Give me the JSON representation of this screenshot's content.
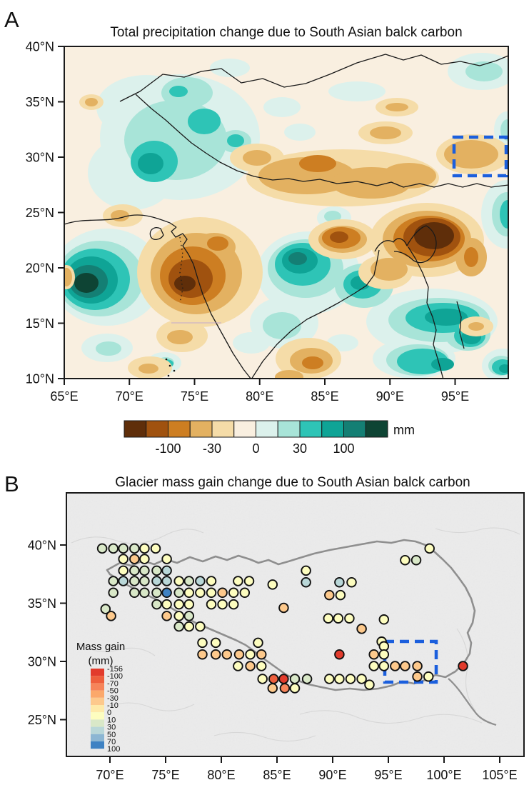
{
  "panel_a": {
    "label": "A",
    "title": "Total precipitation change due to South Asian balck carbon",
    "x_ticks": [
      {
        "lon": 65,
        "label": "65°E"
      },
      {
        "lon": 70,
        "label": "70°E"
      },
      {
        "lon": 75,
        "label": "75°E"
      },
      {
        "lon": 80,
        "label": "80°E"
      },
      {
        "lon": 85,
        "label": "85°E"
      },
      {
        "lon": 90,
        "label": "90°E"
      },
      {
        "lon": 95,
        "label": "95°E"
      }
    ],
    "y_ticks": [
      {
        "lat": 40,
        "label": "40°N"
      },
      {
        "lat": 35,
        "label": "35°N"
      },
      {
        "lat": 30,
        "label": "30°N"
      },
      {
        "lat": 25,
        "label": "25°N"
      },
      {
        "lat": 20,
        "label": "20°N"
      },
      {
        "lat": 15,
        "label": "15°N"
      },
      {
        "lat": 10,
        "label": "10°N"
      }
    ],
    "colorbar": {
      "unit": "mm",
      "colors": [
        "#5f2e0a",
        "#a0520f",
        "#cd7e22",
        "#e3b161",
        "#f5dca8",
        "#f9efe0",
        "#dcf1ec",
        "#a8e4d8",
        "#2ec4b6",
        "#0fa496",
        "#147f74",
        "#0e4434"
      ],
      "labels": [
        {
          "text": "-100",
          "boundary": 2
        },
        {
          "text": "-30",
          "boundary": 4
        },
        {
          "text": "0",
          "boundary": 6
        },
        {
          "text": "30",
          "boundary": 8
        },
        {
          "text": "100",
          "boundary": 10
        }
      ]
    },
    "highlight_box": {
      "lon_min": 94.9,
      "lon_max": 98.9,
      "lat_min": 28.3,
      "lat_max": 31.8,
      "color": "#1b5fdd"
    }
  },
  "panel_b": {
    "label": "B",
    "title": "Glacier mass gain change due to South Asian balck carbon",
    "x_ticks": [
      {
        "lon": 70,
        "label": "70°E"
      },
      {
        "lon": 75,
        "label": "75°E"
      },
      {
        "lon": 80,
        "label": "80°E"
      },
      {
        "lon": 85,
        "label": "85°E"
      },
      {
        "lon": 90,
        "label": "90°E"
      },
      {
        "lon": 95,
        "label": "95°E"
      },
      {
        "lon": 100,
        "label": "100°E"
      },
      {
        "lon": 105,
        "label": "105°E"
      }
    ],
    "y_ticks": [
      {
        "lat": 40,
        "label": "40°N"
      },
      {
        "lat": 35,
        "label": "35°N"
      },
      {
        "lat": 30,
        "label": "30°N"
      },
      {
        "lat": 25,
        "label": "25°N"
      }
    ],
    "legend": {
      "title_line1": "Mass gain",
      "title_line2": "(mm)",
      "labels": [
        "-156",
        "-100",
        "-70",
        "-50",
        "-30",
        "-10",
        "0",
        "10",
        "30",
        "50",
        "70",
        "100"
      ],
      "colors": [
        "#e23b2c",
        "#ee5f3d",
        "#f6845a",
        "#fba86b",
        "#fdc98c",
        "#feeaa9",
        "#fdfdbf",
        "#d9e8c8",
        "#b9d7d8",
        "#8cb6d3",
        "#3f82c3"
      ]
    },
    "highlight_box": {
      "lon_min": 94.7,
      "lon_max": 99.3,
      "lat_min": 28.2,
      "lat_max": 31.7,
      "color": "#1b5fdd"
    }
  },
  "chart_data": [
    {
      "type": "heatmap",
      "subtype": "filled-contour-map",
      "title": "Total precipitation change due to South Asian balck carbon",
      "units": "mm",
      "lon_range": [
        65,
        99.2
      ],
      "lat_range": [
        10,
        40
      ],
      "x_tick_labels": [
        "65°E",
        "70°E",
        "75°E",
        "80°E",
        "85°E",
        "90°E",
        "95°E"
      ],
      "y_tick_labels": [
        "40°N",
        "35°N",
        "30°N",
        "25°N",
        "20°N",
        "15°N",
        "10°N"
      ],
      "colorbar_tick_labels": [
        "-100",
        "-30",
        "0",
        "30",
        "100"
      ],
      "colorbar_colors": [
        "#5f2e0a",
        "#a0520f",
        "#cd7e22",
        "#e3b161",
        "#f5dca8",
        "#f9efe0",
        "#dcf1ec",
        "#a8e4d8",
        "#2ec4b6",
        "#0fa496",
        "#147f74",
        "#0e4434"
      ],
      "highlight_box_lonlat": {
        "lon": [
          94.9,
          98.9
        ],
        "lat": [
          28.3,
          31.8
        ]
      },
      "anomaly_centers": [
        {
          "lon": 67,
          "lat": 18.5,
          "value_mm": 150,
          "sign": "increase"
        },
        {
          "lon": 73,
          "lat": 33,
          "value_mm": 100,
          "sign": "increase"
        },
        {
          "lon": 84,
          "lat": 22,
          "value_mm": 150,
          "sign": "increase"
        },
        {
          "lon": 88,
          "lat": 19.5,
          "value_mm": 100,
          "sign": "increase"
        },
        {
          "lon": 92,
          "lat": 16,
          "value_mm": 70,
          "sign": "increase"
        },
        {
          "lon": 75,
          "lat": 18.5,
          "value_mm": -150,
          "sign": "decrease"
        },
        {
          "lon": 92,
          "lat": 23.5,
          "value_mm": -150,
          "sign": "decrease"
        },
        {
          "lon": 86,
          "lat": 23,
          "value_mm": -70,
          "sign": "decrease"
        },
        {
          "lon": 85,
          "lat": 28,
          "value_mm": -50,
          "sign": "decrease"
        },
        {
          "lon": 96.5,
          "lat": 31,
          "value_mm": -30,
          "sign": "decrease"
        }
      ]
    },
    {
      "type": "scatter",
      "subtype": "dot-map",
      "title": "Glacier mass gain change due to South Asian balck carbon",
      "units": "mm",
      "legend_title": "Mass gain (mm)",
      "legend_boundaries": [
        -156,
        -100,
        -70,
        -50,
        -30,
        -10,
        0,
        10,
        30,
        50,
        70,
        100
      ],
      "classes": {
        "y": {
          "color": "#fdfdbf",
          "mass_gain_mm": "0 to 10"
        },
        "g": {
          "color": "#d9e8c8",
          "mass_gain_mm": "10 to 30"
        },
        "gb": {
          "color": "#b9d7d8",
          "mass_gain_mm": "30 to 50"
        },
        "B": {
          "color": "#3f82c3",
          "mass_gain_mm": "70 to 100"
        },
        "o1": {
          "color": "#fdc98c",
          "mass_gain_mm": "-30 to -10"
        },
        "o2": {
          "color": "#f6845a",
          "mass_gain_mm": "-70 to -50"
        },
        "o3": {
          "color": "#ee5f3d",
          "mass_gain_mm": "-100 to -70"
        },
        "R": {
          "color": "#e23b2c",
          "mass_gain_mm": "-156 to -100"
        }
      },
      "points": [
        [
          69.3,
          39.7,
          "g"
        ],
        [
          70.3,
          39.7,
          "g"
        ],
        [
          71.2,
          39.7,
          "g"
        ],
        [
          72.2,
          39.7,
          "g"
        ],
        [
          73.1,
          39.7,
          "y"
        ],
        [
          74.1,
          39.7,
          "y"
        ],
        [
          71.2,
          38.8,
          "y"
        ],
        [
          72.2,
          38.8,
          "o1"
        ],
        [
          73.1,
          38.8,
          "y"
        ],
        [
          75.1,
          38.8,
          "y"
        ],
        [
          71.2,
          37.8,
          "y"
        ],
        [
          72.2,
          37.8,
          "g"
        ],
        [
          73.1,
          37.8,
          "g"
        ],
        [
          74.2,
          37.8,
          "g"
        ],
        [
          75.1,
          37.8,
          "gb"
        ],
        [
          87.6,
          37.8,
          "y"
        ],
        [
          70.3,
          36.9,
          "g"
        ],
        [
          71.2,
          36.9,
          "gb"
        ],
        [
          72.2,
          36.9,
          "g"
        ],
        [
          73.1,
          36.9,
          "g"
        ],
        [
          74.2,
          36.9,
          "gb"
        ],
        [
          75.1,
          36.9,
          "gb"
        ],
        [
          76.2,
          36.9,
          "y"
        ],
        [
          77.1,
          36.9,
          "g"
        ],
        [
          78.1,
          36.9,
          "gb"
        ],
        [
          79.1,
          36.9,
          "y"
        ],
        [
          81.5,
          36.9,
          "y"
        ],
        [
          82.5,
          36.9,
          "y"
        ],
        [
          87.6,
          36.8,
          "gb"
        ],
        [
          90.6,
          36.8,
          "gb"
        ],
        [
          91.7,
          36.8,
          "y"
        ],
        [
          84.6,
          36.6,
          "y"
        ],
        [
          70.3,
          35.9,
          "g"
        ],
        [
          72.2,
          35.9,
          "g"
        ],
        [
          73.1,
          35.9,
          "g"
        ],
        [
          74.2,
          35.9,
          "g"
        ],
        [
          75.1,
          35.9,
          "B"
        ],
        [
          76.2,
          35.9,
          "g"
        ],
        [
          77.1,
          35.9,
          "y"
        ],
        [
          78.1,
          35.9,
          "y"
        ],
        [
          79.1,
          35.9,
          "y"
        ],
        [
          80.1,
          35.9,
          "o1"
        ],
        [
          81.1,
          35.9,
          "y"
        ],
        [
          82.1,
          35.9,
          "y"
        ],
        [
          89.7,
          35.7,
          "o1"
        ],
        [
          90.7,
          35.7,
          "y"
        ],
        [
          74.2,
          34.9,
          "g"
        ],
        [
          75.1,
          34.9,
          "y"
        ],
        [
          76.2,
          34.9,
          "y"
        ],
        [
          77.1,
          34.9,
          "y"
        ],
        [
          79.1,
          34.9,
          "y"
        ],
        [
          80.1,
          34.9,
          "y"
        ],
        [
          81.1,
          34.9,
          "y"
        ],
        [
          69.6,
          34.5,
          "g"
        ],
        [
          85.6,
          34.6,
          "o1"
        ],
        [
          70.1,
          33.9,
          "o1"
        ],
        [
          75.1,
          33.9,
          "o1"
        ],
        [
          76.2,
          33.9,
          "y"
        ],
        [
          77.1,
          33.9,
          "g"
        ],
        [
          76.2,
          33.0,
          "g"
        ],
        [
          77.1,
          33.0,
          "y"
        ],
        [
          78.1,
          33.0,
          "y"
        ],
        [
          89.6,
          33.7,
          "y"
        ],
        [
          90.5,
          33.7,
          "y"
        ],
        [
          91.5,
          33.7,
          "y"
        ],
        [
          94.6,
          33.6,
          "y"
        ],
        [
          92.6,
          32.8,
          "o1"
        ],
        [
          78.3,
          31.6,
          "y"
        ],
        [
          79.5,
          31.6,
          "y"
        ],
        [
          83.3,
          31.6,
          "y"
        ],
        [
          94.4,
          31.7,
          "y"
        ],
        [
          94.6,
          31.3,
          "y"
        ],
        [
          78.3,
          30.6,
          "o1"
        ],
        [
          79.5,
          30.6,
          "o1"
        ],
        [
          80.5,
          30.6,
          "o1"
        ],
        [
          81.6,
          30.6,
          "o1"
        ],
        [
          82.6,
          30.6,
          "y"
        ],
        [
          83.6,
          30.6,
          "o1"
        ],
        [
          90.6,
          30.6,
          "R"
        ],
        [
          93.7,
          30.6,
          "o1"
        ],
        [
          94.6,
          30.6,
          "y"
        ],
        [
          81.5,
          29.6,
          "y"
        ],
        [
          82.6,
          29.6,
          "o1"
        ],
        [
          83.6,
          29.6,
          "y"
        ],
        [
          93.7,
          29.6,
          "y"
        ],
        [
          94.6,
          29.6,
          "y"
        ],
        [
          95.6,
          29.6,
          "o1"
        ],
        [
          96.5,
          29.6,
          "o1"
        ],
        [
          97.6,
          29.6,
          "o1"
        ],
        [
          101.7,
          29.6,
          "R"
        ],
        [
          97.6,
          28.7,
          "o1"
        ],
        [
          98.6,
          28.7,
          "y"
        ],
        [
          83.7,
          28.5,
          "y"
        ],
        [
          84.7,
          28.5,
          "o3"
        ],
        [
          85.6,
          28.5,
          "R"
        ],
        [
          86.6,
          28.5,
          "g"
        ],
        [
          87.7,
          28.5,
          "g"
        ],
        [
          89.7,
          28.5,
          "y"
        ],
        [
          90.6,
          28.5,
          "y"
        ],
        [
          91.6,
          28.5,
          "y"
        ],
        [
          92.6,
          28.5,
          "y"
        ],
        [
          93.3,
          28.0,
          "y"
        ],
        [
          84.6,
          27.7,
          "o1"
        ],
        [
          85.7,
          27.7,
          "o2"
        ],
        [
          86.6,
          27.7,
          "y"
        ],
        [
          96.5,
          38.7,
          "y"
        ],
        [
          97.5,
          38.7,
          "g"
        ],
        [
          98.7,
          39.7,
          "y"
        ]
      ]
    }
  ]
}
